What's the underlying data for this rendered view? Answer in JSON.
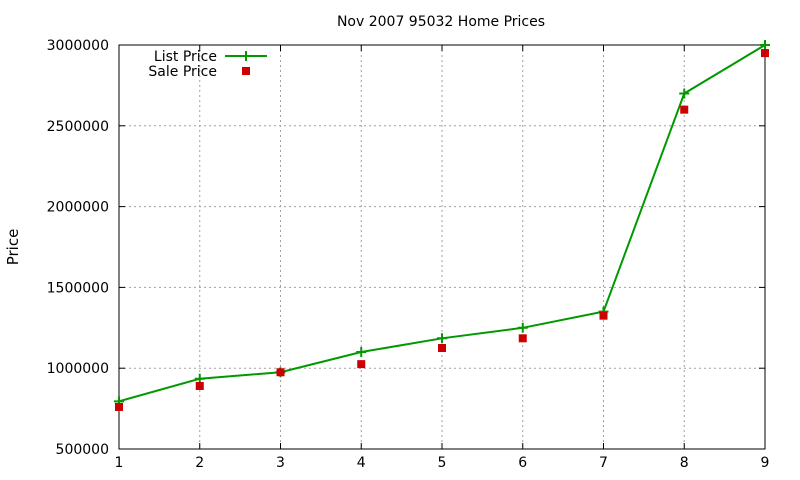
{
  "chart_data": {
    "type": "line",
    "title": "Nov 2007 95032 Home Prices",
    "xlabel": "",
    "ylabel": "Price",
    "x": [
      1,
      2,
      3,
      4,
      5,
      6,
      7,
      8,
      9
    ],
    "xlim": [
      1,
      9
    ],
    "ylim": [
      500000,
      3000000
    ],
    "xticks": [
      "1",
      "2",
      "3",
      "4",
      "5",
      "6",
      "7",
      "8",
      "9"
    ],
    "yticks": [
      "500000",
      "1000000",
      "1500000",
      "2000000",
      "2500000",
      "3000000"
    ],
    "grid": true,
    "legend_position": "top-left",
    "series": [
      {
        "name": "List Price",
        "style": "line-with-plus-markers",
        "color": "#009900",
        "values": [
          795000,
          935000,
          975000,
          1100000,
          1185000,
          1250000,
          1350000,
          2700000,
          3000000
        ]
      },
      {
        "name": "Sale Price",
        "style": "square-markers",
        "color": "#cc0000",
        "values": [
          760000,
          890000,
          975000,
          1025000,
          1125000,
          1185000,
          1325000,
          2600000,
          2950000
        ]
      }
    ]
  }
}
